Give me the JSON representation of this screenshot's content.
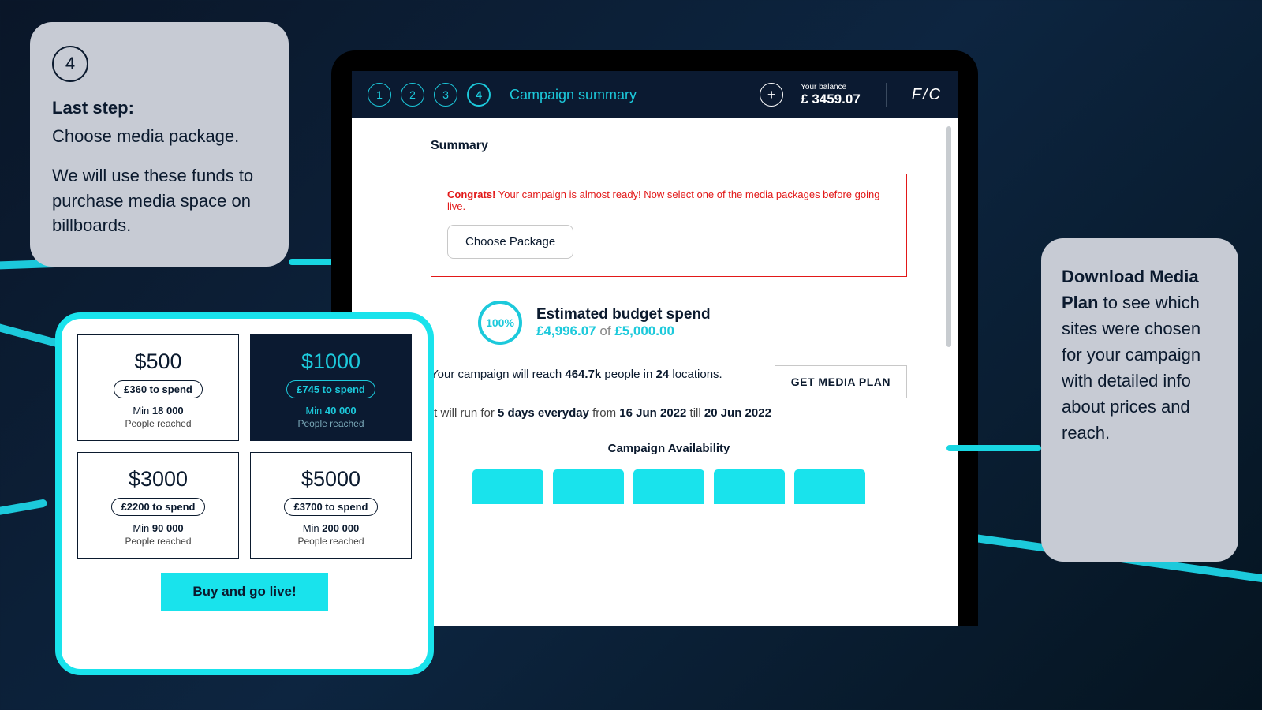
{
  "callout_left": {
    "step": "4",
    "head": "Last step:",
    "line1": "Choose media package.",
    "line2": "We will use these funds to purchase media space on billboards."
  },
  "nav": {
    "steps": [
      "1",
      "2",
      "3",
      "4"
    ],
    "active_step_index": 3,
    "title": "Campaign summary",
    "balance_label": "Your balance",
    "balance_amount": "£ 3459.07",
    "logo": "F/C"
  },
  "summary": {
    "heading": "Summary",
    "alert_strong": "Congrats!",
    "alert_text": " Your campaign is almost ready! Now select one of the media packages before going live.",
    "choose_btn": "Choose Package",
    "pct": "100%",
    "budget_title": "Estimated budget spend",
    "budget_spent": "£4,996.07",
    "budget_of": " of ",
    "budget_total": "£5,000.00",
    "reach_pre": "Your campaign will reach ",
    "reach_num": "464.7k",
    "reach_mid": " people in ",
    "reach_loc": "24",
    "reach_post": " locations.",
    "media_plan_btn": "GET MEDIA PLAN",
    "run_pre": "It will run for ",
    "run_days": "5 days everyday",
    "run_mid": " from ",
    "run_from": "16 Jun 2022",
    "run_mid2": " till ",
    "run_to": "20 Jun 2022",
    "avail_title": "Campaign Availability",
    "day_count": 5
  },
  "packages": {
    "items": [
      {
        "price": "$500",
        "spend": "£360 to spend",
        "reach_pre": "Min ",
        "reach_num": "18 000",
        "sub": "People reached",
        "selected": false
      },
      {
        "price": "$1000",
        "spend": "£745 to spend",
        "reach_pre": "Min ",
        "reach_num": "40 000",
        "sub": "People reached",
        "selected": true
      },
      {
        "price": "$3000",
        "spend": "£2200 to spend",
        "reach_pre": "Min ",
        "reach_num": "90 000",
        "sub": "People reached",
        "selected": false
      },
      {
        "price": "$5000",
        "spend": "£3700 to spend",
        "reach_pre": "Min ",
        "reach_num": "200 000",
        "sub": "People reached",
        "selected": false
      }
    ],
    "buy_btn": "Buy and go live!"
  },
  "callout_right": {
    "head": "Download Media Plan",
    "body": "to see which sites were chosen for your campaign with detailed info about prices and reach."
  },
  "colors": {
    "navy": "#0b1a31",
    "cyan": "#1cc9db",
    "bright_cyan": "#19e3ec",
    "red": "#e21818",
    "callout_grey": "#c7cbd4"
  }
}
